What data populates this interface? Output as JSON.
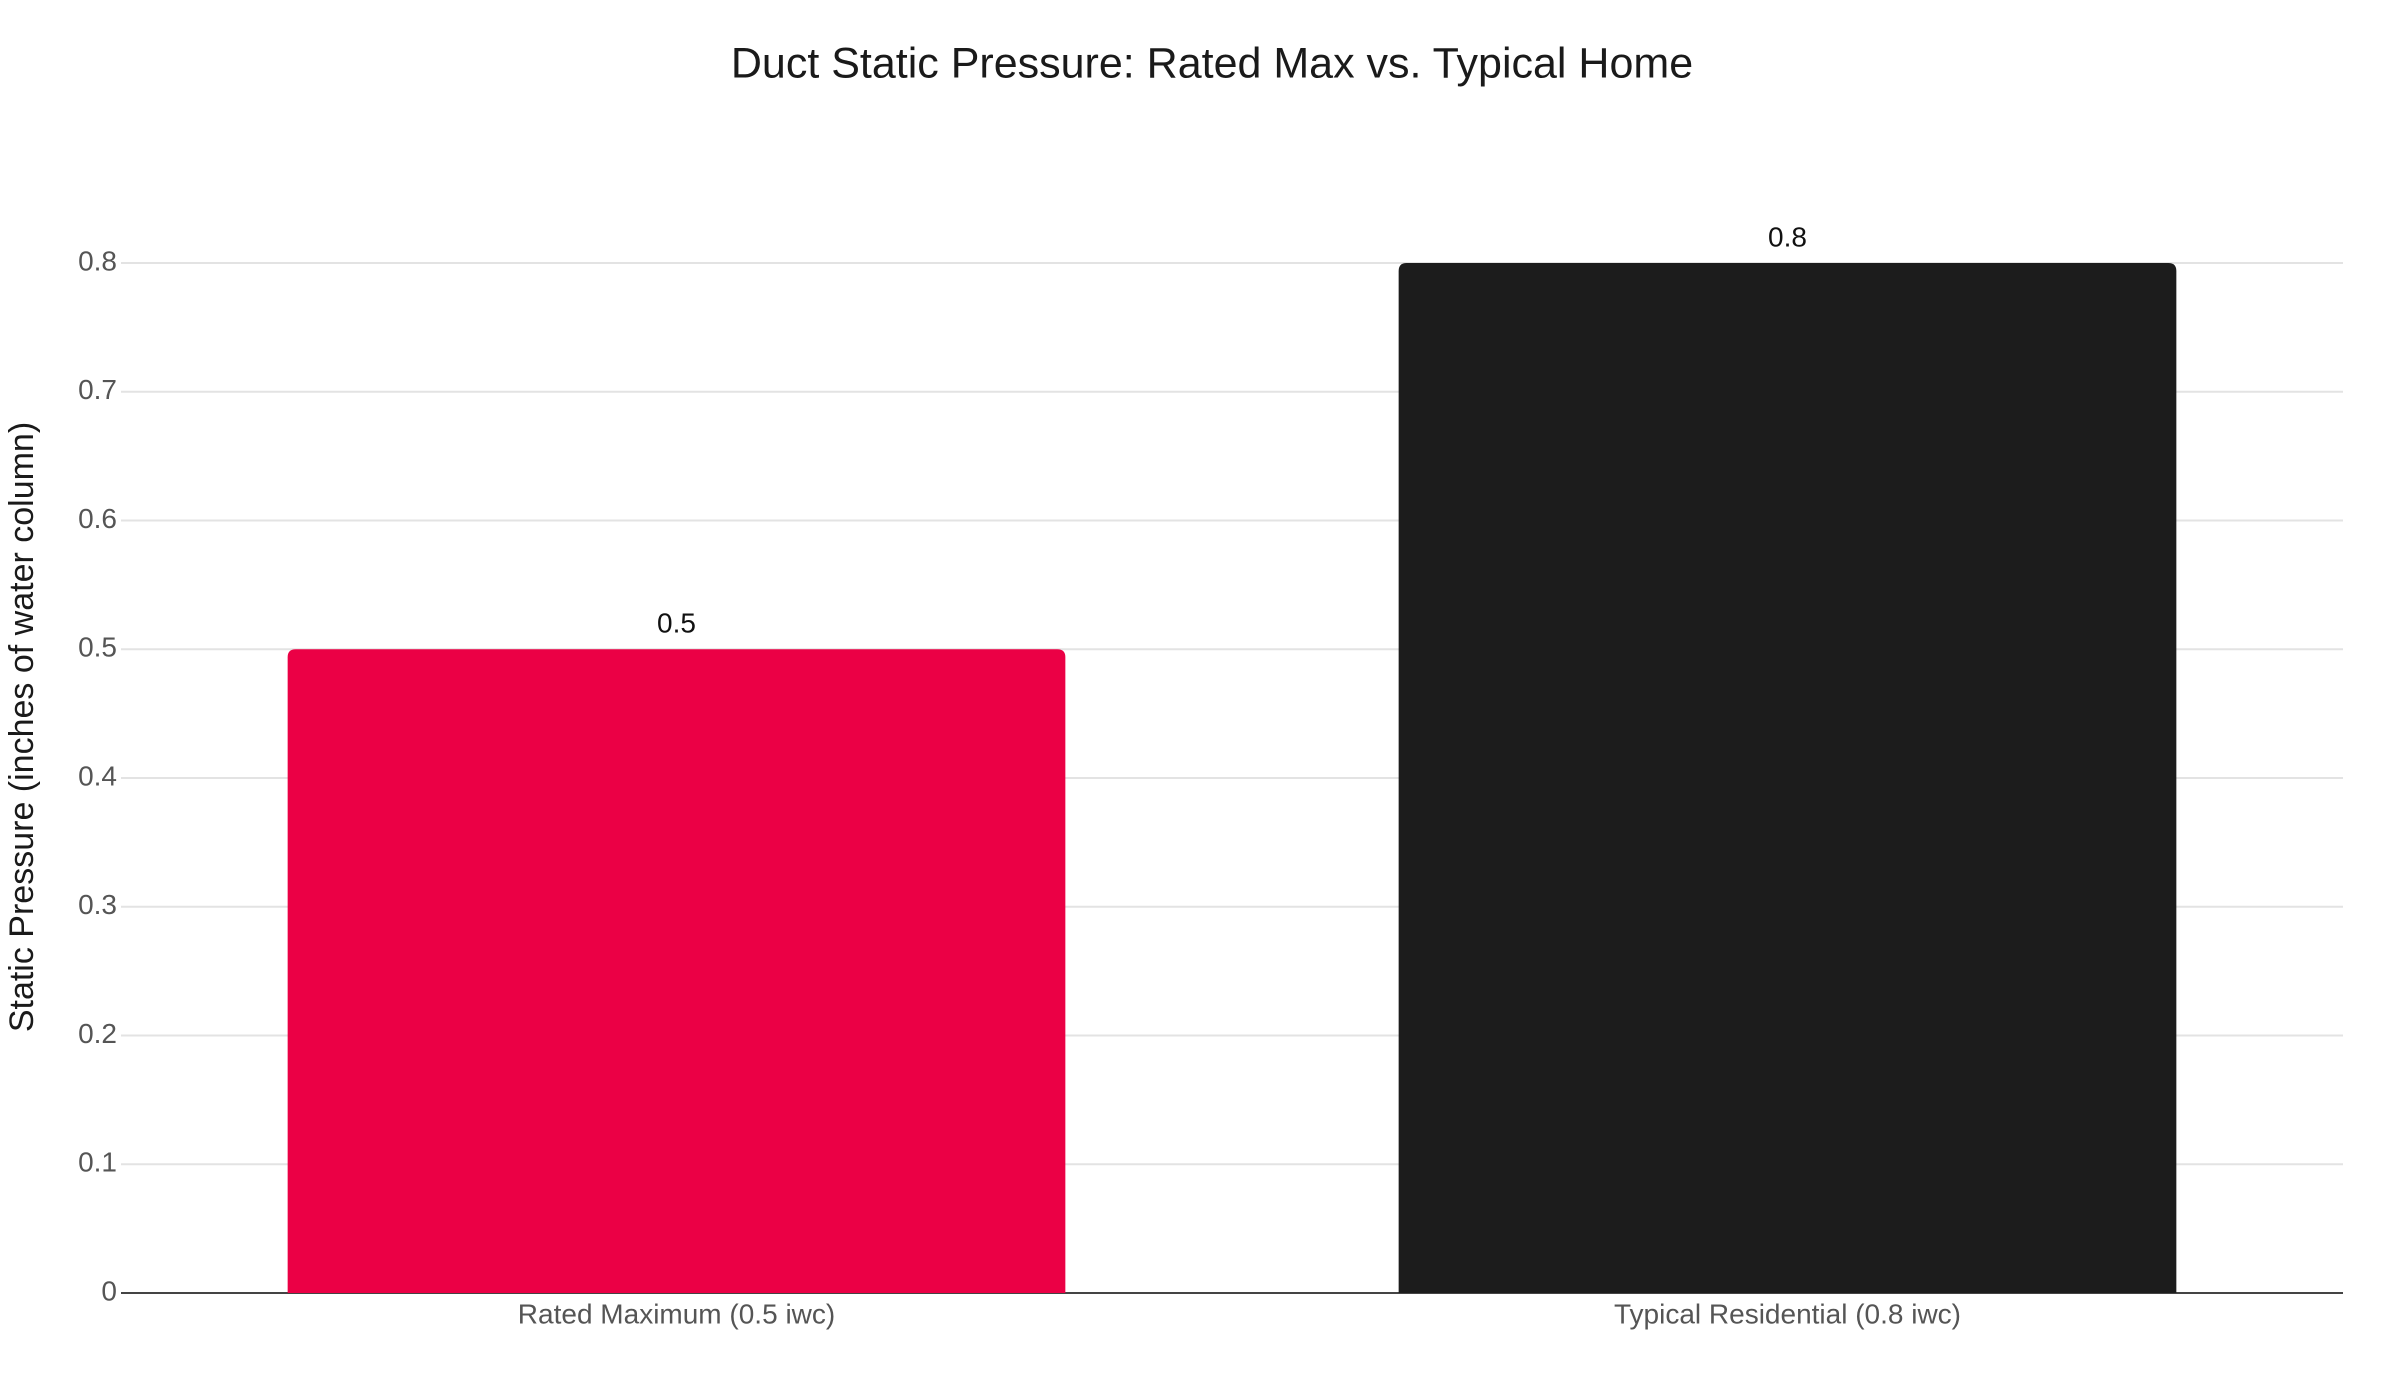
{
  "chart_data": {
    "type": "bar",
    "title": "Duct Static Pressure: Rated Max vs. Typical Home",
    "categories": [
      "Rated Maximum (0.5 iwc)",
      "Typical Residential (0.8 iwc)"
    ],
    "values": [
      0.5,
      0.8
    ],
    "colors": [
      "#eb0045",
      "#1c1c1c"
    ],
    "y_label": "Static Pressure (inches of water column)",
    "ylim": [
      0,
      0.8
    ],
    "yticks": [
      0,
      0.1,
      0.2,
      0.3,
      0.4,
      0.5,
      0.6,
      0.7,
      0.8
    ],
    "grid": true
  }
}
